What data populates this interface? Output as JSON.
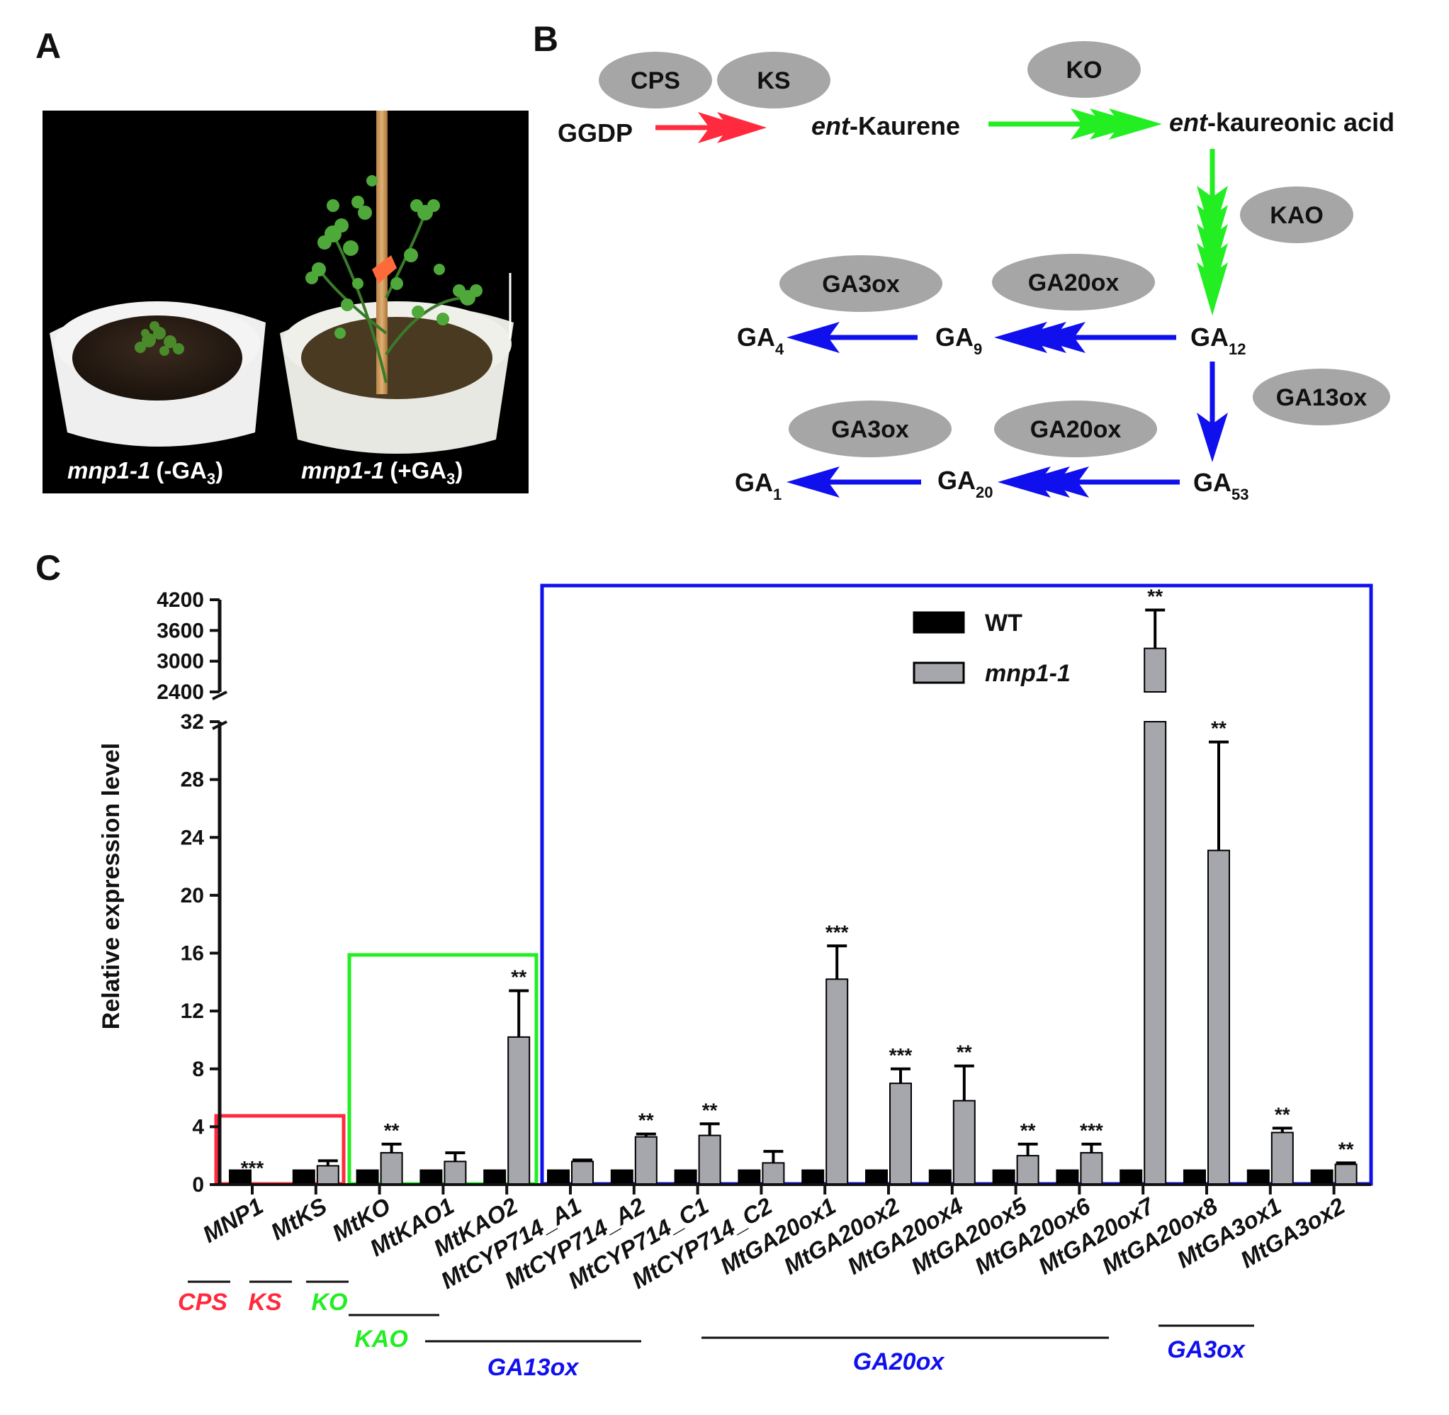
{
  "panels": {
    "a": "A",
    "b": "B",
    "c": "C"
  },
  "panel_a": {
    "left_caption": {
      "genotype": "mnp1-1",
      "treatment_prefix": "(-GA",
      "sub": "3",
      "suffix": ")"
    },
    "right_caption": {
      "genotype": "mnp1-1",
      "treatment_prefix": "(+GA",
      "sub": "3",
      "suffix": ")"
    }
  },
  "pathway": {
    "enzymes": {
      "cps": "CPS",
      "ks": "KS",
      "ko": "KO",
      "kao": "KAO",
      "ga3ox_top": "GA3ox",
      "ga20ox_top": "GA20ox",
      "ga13ox": "GA13ox",
      "ga3ox_bottom": "GA3ox",
      "ga20ox_bottom": "GA20ox"
    },
    "metabolites": {
      "ggdp": "GGDP",
      "kaurene": {
        "italic": "ent",
        "rest": "-Kaurene"
      },
      "kaureonic": {
        "italic": "ent",
        "rest": "-kaureonic acid"
      },
      "ga4": {
        "base": "GA",
        "sub": "4"
      },
      "ga9": {
        "base": "GA",
        "sub": "9"
      },
      "ga12": {
        "base": "GA",
        "sub": "12"
      },
      "ga1": {
        "base": "GA",
        "sub": "1"
      },
      "ga20": {
        "base": "GA",
        "sub": "20"
      },
      "ga53": {
        "base": "GA",
        "sub": "53"
      }
    },
    "colors": {
      "red": "#ff2a3d",
      "green": "#22ee22",
      "blue": "#1010ee",
      "enzyme_fill": "#a6a6a6"
    }
  },
  "chart_data": {
    "type": "bar",
    "ylabel": "Relative expression level",
    "y_lower_range": [
      0,
      32
    ],
    "y_lower_ticks": [
      "0",
      "4",
      "8",
      "12",
      "16",
      "20",
      "24",
      "28",
      "32"
    ],
    "y_upper_range": [
      2400,
      4200
    ],
    "y_upper_ticks": [
      "2400",
      "3000",
      "3600",
      "4200"
    ],
    "categories": [
      "MNP1",
      "MtKS",
      "MtKO",
      "MtKAO1",
      "MtKAO2",
      "MtCYP714_A1",
      "MtCYP714_A2",
      "MtCYP714_C1",
      "MtCYP714_C2",
      "MtGA20ox1",
      "MtGA20ox2",
      "MtGA20ox4",
      "MtGA20ox5",
      "MtGA20ox6",
      "MtGA20ox7",
      "MtGA20ox8",
      "MtGA3ox1",
      "MtGA3ox2"
    ],
    "series": [
      {
        "name": "WT",
        "color": "#000000",
        "values": [
          1,
          1,
          1,
          1,
          1,
          1,
          1,
          1,
          1,
          1,
          1,
          1,
          1,
          1,
          1,
          1,
          1,
          1
        ],
        "errors": [
          0,
          0,
          0,
          0,
          0,
          0,
          0,
          0,
          0,
          0,
          0,
          0,
          0,
          0,
          0,
          0,
          0,
          0
        ]
      },
      {
        "name": "mnp1-1",
        "color": "#a6a6ad",
        "values": [
          0.05,
          1.3,
          2.2,
          1.6,
          10.2,
          1.6,
          3.3,
          3.4,
          1.5,
          14.2,
          7.0,
          5.8,
          2.0,
          2.2,
          3250,
          23.1,
          3.6,
          1.4
        ],
        "errors": [
          0,
          0.35,
          0.6,
          0.6,
          3.2,
          0.1,
          0.2,
          0.8,
          0.8,
          2.3,
          1.0,
          2.4,
          0.8,
          0.6,
          750,
          7.5,
          0.3,
          0.1
        ]
      }
    ],
    "significance": [
      "***",
      "",
      "**",
      "",
      "**",
      "",
      "**",
      "**",
      "",
      "***",
      "***",
      "**",
      "**",
      "***",
      "**",
      "**",
      "**",
      "**"
    ],
    "legend": {
      "position": "top-right",
      "entries": [
        "WT",
        "mnp1-1"
      ]
    },
    "groups": [
      {
        "label": "CPS",
        "color": "#ff2a3d"
      },
      {
        "label": "KS",
        "color": "#ff2a3d"
      },
      {
        "label": "KO",
        "color": "#22ee22"
      },
      {
        "label": "KAO",
        "color": "#22ee22"
      },
      {
        "label": "GA13ox",
        "color": "#1010ee"
      },
      {
        "label": "GA20ox",
        "color": "#1010ee"
      },
      {
        "label": "GA3ox",
        "color": "#1010ee"
      }
    ],
    "highlight_boxes": [
      {
        "color": "#ff2a3d",
        "from": "MNP1",
        "to": "MtKS"
      },
      {
        "color": "#22ee22",
        "from": "MtKO",
        "to": "MtKAO2"
      },
      {
        "color": "#1010ee",
        "from": "MtCYP714_A1",
        "to": "MtGA3ox2"
      }
    ],
    "grid": false
  }
}
